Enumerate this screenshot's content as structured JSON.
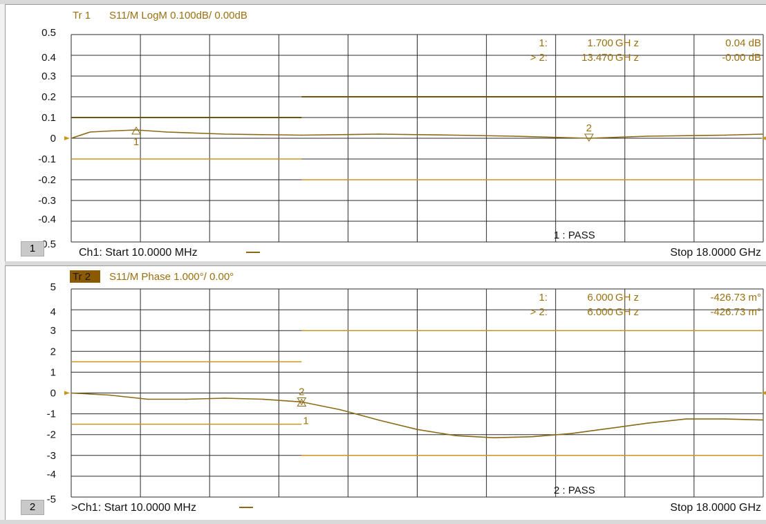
{
  "colors": {
    "trace": "#8b6914",
    "trace_dark": "#6b5410",
    "limit": "#c8961e",
    "title": "#9a7010",
    "grid": "#2a2a2a",
    "tag_bg": "#8b5a00"
  },
  "panels": [
    {
      "id": "p1",
      "trace_tag": "Tr 1",
      "trace_title": "S11/M LogM 0.100dB/ 0.00dB",
      "y_labels": [
        "0.5",
        "0.4",
        "0.3",
        "0.2",
        "0.1",
        "0",
        "-0.1",
        "-0.2",
        "-0.3",
        "-0.4",
        "-0.5"
      ],
      "ylim": [
        -0.5,
        0.5
      ],
      "ref_arrow_value": 0,
      "markers_table": [
        {
          "id": "1:",
          "freq": "1.700",
          "unit": "GH z",
          "value": "0.04 dB"
        },
        {
          "id": "> 2:",
          "freq": "13.470",
          "unit": "GH z",
          "value": "-0.00 dB"
        }
      ],
      "pass_text": "1 : PASS",
      "channel_number": "1",
      "start_text": "Ch1:  Start  10.0000 MHz",
      "stop_text": "Stop  18.0000 GHz",
      "marker1_label": "1",
      "marker2_label": "2"
    },
    {
      "id": "p2",
      "trace_tag": "Tr 2",
      "trace_title": "S11/M Phase 1.000°/ 0.00°",
      "y_labels": [
        "5",
        "4",
        "3",
        "2",
        "1",
        "0",
        "-1",
        "-2",
        "-3",
        "-4",
        "-5"
      ],
      "ylim": [
        -5,
        5
      ],
      "ref_arrow_value": 0,
      "markers_table": [
        {
          "id": "1:",
          "freq": "6.000",
          "unit": "GH z",
          "value": "-426.73 m°"
        },
        {
          "id": "> 2:",
          "freq": "6.000",
          "unit": "GH z",
          "value": "-426.73 m°"
        }
      ],
      "pass_text": "2 : PASS",
      "channel_number": "2",
      "start_text": ">Ch1:  Start  10.0000 MHz",
      "stop_text": "Stop  18.0000 GHz",
      "marker1_label": "1",
      "marker2_label": "2"
    }
  ],
  "chart_data": [
    {
      "type": "line",
      "title": "S11/M LogM 0.100dB/ 0.00dB",
      "xlabel": "",
      "ylabel": "",
      "x_unit": "GHz",
      "xlim": [
        0.01,
        18.0
      ],
      "ylim": [
        -0.5,
        0.5
      ],
      "grid": true,
      "series": [
        {
          "x": [
            0.01,
            0.5,
            1.0,
            1.7,
            2.5,
            4.0,
            6.0,
            8.0,
            10.0,
            11.5,
            13.47,
            15.0,
            17.0,
            18.0
          ],
          "y": [
            0.0,
            0.03,
            0.035,
            0.04,
            0.03,
            0.02,
            0.015,
            0.02,
            0.015,
            0.01,
            0.0,
            0.01,
            0.015,
            0.02
          ]
        }
      ],
      "limit_lines": [
        {
          "x": [
            0.01,
            6.0
          ],
          "y": [
            0.1,
            0.1
          ]
        },
        {
          "x": [
            0.01,
            6.0
          ],
          "y": [
            -0.1,
            -0.1
          ]
        },
        {
          "x": [
            6.0,
            18.0
          ],
          "y": [
            0.2,
            0.2
          ]
        },
        {
          "x": [
            6.0,
            18.0
          ],
          "y": [
            -0.2,
            -0.2
          ]
        }
      ],
      "markers": [
        {
          "label": "1",
          "x": 1.7,
          "y": 0.04
        },
        {
          "label": "2",
          "x": 13.47,
          "y": 0.0
        }
      ]
    },
    {
      "type": "line",
      "title": "S11/M Phase 1.000°/ 0.00°",
      "xlabel": "",
      "ylabel": "",
      "x_unit": "GHz",
      "xlim": [
        0.01,
        18.0
      ],
      "ylim": [
        -5,
        5
      ],
      "grid": true,
      "series": [
        {
          "x": [
            0.01,
            1.0,
            2.0,
            3.0,
            4.0,
            5.0,
            6.0,
            7.0,
            8.0,
            9.0,
            10.0,
            11.0,
            12.0,
            13.0,
            14.0,
            15.0,
            16.0,
            17.0,
            18.0
          ],
          "y": [
            0.0,
            -0.1,
            -0.3,
            -0.3,
            -0.25,
            -0.3,
            -0.43,
            -0.8,
            -1.3,
            -1.75,
            -2.05,
            -2.15,
            -2.1,
            -1.95,
            -1.7,
            -1.45,
            -1.25,
            -1.25,
            -1.3
          ]
        }
      ],
      "limit_lines": [
        {
          "x": [
            0.01,
            6.0
          ],
          "y": [
            1.5,
            1.5
          ]
        },
        {
          "x": [
            0.01,
            6.0
          ],
          "y": [
            -1.5,
            -1.5
          ]
        },
        {
          "x": [
            6.0,
            18.0
          ],
          "y": [
            3.0,
            3.0
          ]
        },
        {
          "x": [
            6.0,
            18.0
          ],
          "y": [
            -3.0,
            -3.0
          ]
        }
      ],
      "markers": [
        {
          "label": "1",
          "x": 6.0,
          "y": -0.43
        },
        {
          "label": "2",
          "x": 6.0,
          "y": -0.43
        }
      ]
    }
  ]
}
